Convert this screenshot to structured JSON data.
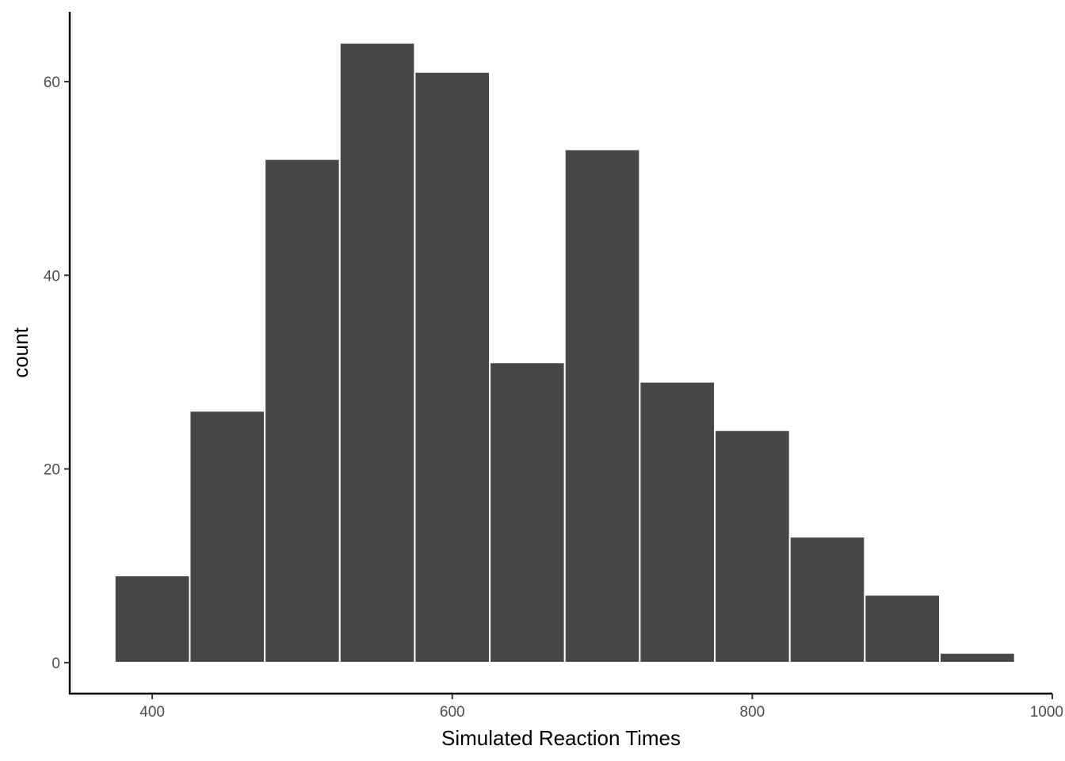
{
  "chart_data": {
    "type": "bar",
    "subtype": "histogram",
    "title": "",
    "xlabel": "Simulated Reaction Times",
    "ylabel": "count",
    "bin_width": 50,
    "bins": [
      {
        "x_start": 375,
        "x_end": 425,
        "count": 9
      },
      {
        "x_start": 425,
        "x_end": 475,
        "count": 26
      },
      {
        "x_start": 475,
        "x_end": 525,
        "count": 52
      },
      {
        "x_start": 525,
        "x_end": 575,
        "count": 64
      },
      {
        "x_start": 575,
        "x_end": 625,
        "count": 61
      },
      {
        "x_start": 625,
        "x_end": 675,
        "count": 31
      },
      {
        "x_start": 675,
        "x_end": 725,
        "count": 53
      },
      {
        "x_start": 725,
        "x_end": 775,
        "count": 29
      },
      {
        "x_start": 775,
        "x_end": 825,
        "count": 24
      },
      {
        "x_start": 825,
        "x_end": 875,
        "count": 13
      },
      {
        "x_start": 875,
        "x_end": 925,
        "count": 7
      },
      {
        "x_start": 925,
        "x_end": 975,
        "count": 1
      }
    ],
    "xlim": [
      345,
      1000
    ],
    "ylim": [
      -3.2,
      67.2
    ],
    "x_ticks": [
      400,
      600,
      800,
      1000
    ],
    "x_tick_labels": [
      "400",
      "600",
      "800",
      "1000"
    ],
    "y_ticks": [
      0,
      20,
      40,
      60
    ],
    "y_tick_labels": [
      "0",
      "20",
      "40",
      "60"
    ],
    "grid": false,
    "legend": "none",
    "colors": {
      "bar_fill": "#474747",
      "bar_outline": "#ffffff",
      "axis_line": "#000000",
      "tick_label": "#4d4d4d"
    }
  }
}
